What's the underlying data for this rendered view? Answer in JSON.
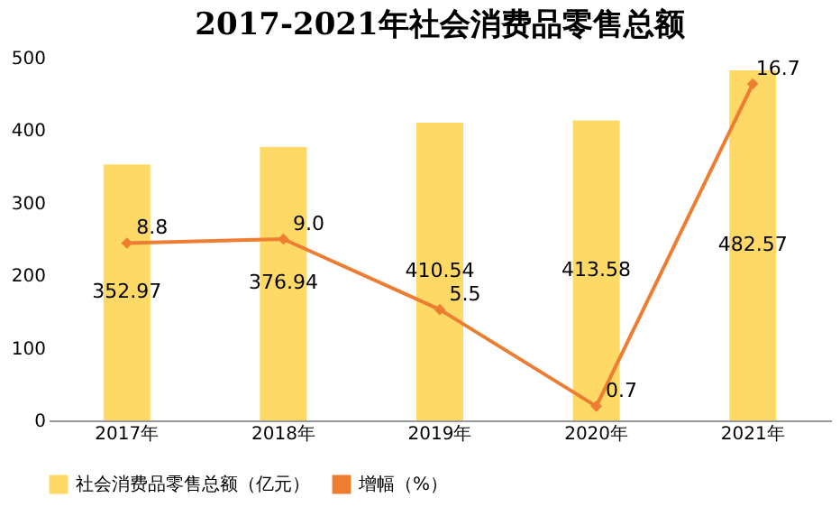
{
  "chart_data": {
    "type": "bar",
    "title": "2017-2021年社会消费品零售总额",
    "categories": [
      "2017年",
      "2018年",
      "2019年",
      "2020年",
      "2021年"
    ],
    "series": [
      {
        "name": "社会消费品零售总额（亿元）",
        "color": "#ffd966",
        "values": [
          352.97,
          376.94,
          410.54,
          413.58,
          482.57
        ]
      },
      {
        "name": "增幅（%）",
        "type": "line",
        "axis": "y2",
        "color": "#ed7d31",
        "values": [
          8.8,
          9.0,
          5.5,
          0.7,
          16.7
        ],
        "value_labels": [
          "8.8",
          "9.0",
          "5.5",
          "0.7",
          "16.7"
        ]
      }
    ],
    "ylim": [
      0,
      500
    ],
    "yticks": [
      0,
      100,
      200,
      300,
      400,
      500
    ],
    "data_labels": true,
    "legend": "bottom",
    "marker": "diamond",
    "grid": false
  }
}
